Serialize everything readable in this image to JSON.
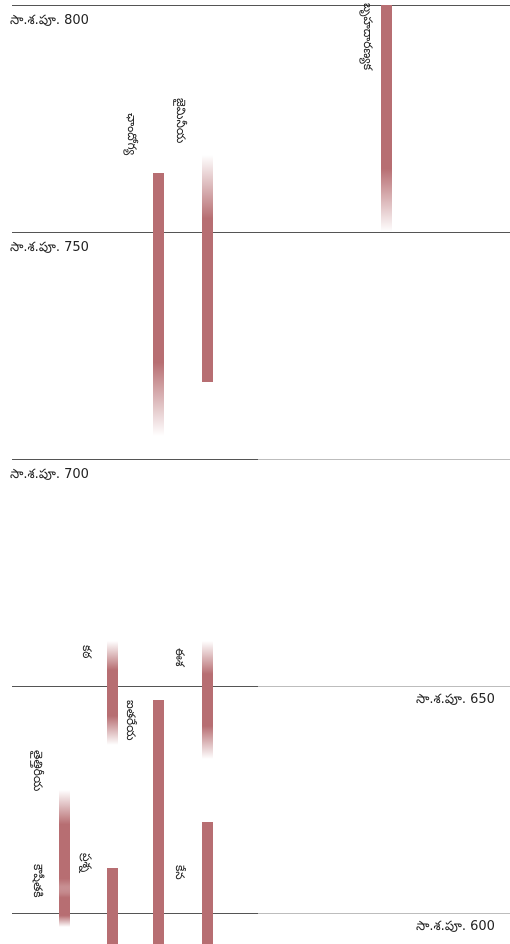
{
  "chart_data": {
    "type": "timeline",
    "bar_color": "#b76e72",
    "axis_ticks": [
      {
        "label": "సా.శ.పూ. 800",
        "value": 800,
        "side": "left"
      },
      {
        "label": "సా.శ.పూ. 750",
        "value": 750,
        "side": "left"
      },
      {
        "label": "సా.శ.పూ. 700",
        "value": 700,
        "side": "left"
      },
      {
        "label": "సా.శ.పూ. 650",
        "value": 650,
        "side": "right"
      },
      {
        "label": "సా.శ.పూ. 600",
        "value": 600,
        "side": "right"
      }
    ],
    "spans": [
      {
        "label": "బృహదారణ్యక",
        "start": 800,
        "end": 750,
        "fade_start": false,
        "fade_end": true
      },
      {
        "label": "ఛాందోగ్య",
        "start": 763,
        "end": 705,
        "fade_start": false,
        "fade_end": true
      },
      {
        "label": "జైమినీయ",
        "start": 767,
        "end": 717,
        "fade_start": true,
        "fade_end": false
      },
      {
        "label": "ఈశ",
        "start": 660,
        "end": 634,
        "fade_start": true,
        "fade_end": true
      },
      {
        "label": "కఠ",
        "start": 660,
        "end": 637,
        "fade_start": true,
        "fade_end": true
      },
      {
        "label": "ఐతరేయ",
        "start": 647,
        "end": 590,
        "fade_start": false,
        "fade_end": false
      },
      {
        "label": "తైత్తిరీయ",
        "start": 627,
        "end": 600,
        "fade_start": true,
        "fade_end": true
      },
      {
        "label": "కౌషీతకి",
        "start": 606,
        "end": 597,
        "fade_start": true,
        "fade_end": true
      },
      {
        "label": "కేన",
        "start": 620,
        "end": 590,
        "fade_start": false,
        "fade_end": false
      },
      {
        "label": "ప్రశ్న",
        "start": 610,
        "end": 590,
        "fade_start": false,
        "fade_end": false
      }
    ]
  }
}
